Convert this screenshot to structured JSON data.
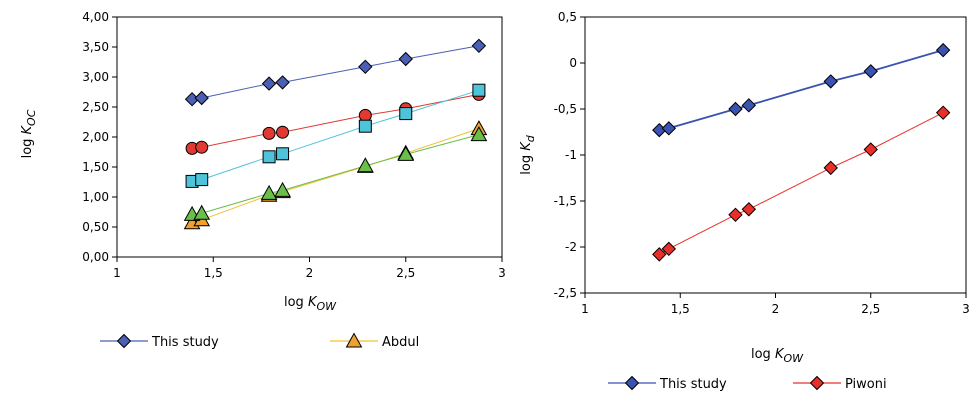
{
  "chart_data": [
    {
      "type": "scatter",
      "xlabel": {
        "prefix": "log ",
        "var": "K",
        "sub": "OW"
      },
      "ylabel": {
        "prefix": "log ",
        "var": "K",
        "sub": "OC"
      },
      "xlim": [
        1,
        3
      ],
      "ylim": [
        0,
        4
      ],
      "xticks": [
        "1",
        "1,5",
        "2",
        "2,5",
        "3"
      ],
      "xtick_values": [
        1,
        1.5,
        2,
        2.5,
        3
      ],
      "yticks": [
        "0,00",
        "0,50",
        "1,00",
        "1,50",
        "2,00",
        "2,50",
        "3,00",
        "3,50",
        "4,00"
      ],
      "ytick_values": [
        0,
        0.5,
        1,
        1.5,
        2,
        2.5,
        3,
        3.5,
        4
      ],
      "grid": false,
      "legend_position": "bottom",
      "series": [
        {
          "name": "This study",
          "marker": "diamond",
          "color": "#4a5fb5",
          "line": "#4a5fb5",
          "x": [
            1.39,
            1.44,
            1.79,
            1.86,
            2.29,
            2.5,
            2.88
          ],
          "y": [
            2.63,
            2.65,
            2.89,
            2.91,
            3.17,
            3.3,
            3.52
          ]
        },
        {
          "name": "",
          "marker": "circle",
          "color": "#e03a32",
          "line": "#e03a32",
          "x": [
            1.39,
            1.44,
            1.79,
            1.86,
            2.29,
            2.5,
            2.88
          ],
          "y": [
            1.81,
            1.83,
            2.06,
            2.08,
            2.36,
            2.47,
            2.71
          ]
        },
        {
          "name": "",
          "marker": "square",
          "color": "#4fc3d9",
          "line": "#4fc3d9",
          "x": [
            1.39,
            1.44,
            1.79,
            1.86,
            2.29,
            2.5,
            2.88
          ],
          "y": [
            1.26,
            1.29,
            1.67,
            1.72,
            2.18,
            2.39,
            2.78
          ]
        },
        {
          "name": "Abdul",
          "marker": "triangle",
          "color": "#f0a030",
          "line": "#f0c030",
          "x": [
            1.39,
            1.44,
            1.79,
            1.86,
            2.29,
            2.5,
            2.88
          ],
          "y": [
            0.57,
            0.62,
            1.03,
            1.09,
            1.51,
            1.73,
            2.14
          ]
        },
        {
          "name": "",
          "marker": "triangle",
          "color": "#6abf4b",
          "line": "#6abf4b",
          "x": [
            1.39,
            1.44,
            1.79,
            1.86,
            2.29,
            2.5,
            2.88
          ],
          "y": [
            0.71,
            0.73,
            1.06,
            1.11,
            1.52,
            1.71,
            2.04
          ]
        }
      ]
    },
    {
      "type": "scatter",
      "xlabel": {
        "prefix": "log ",
        "var": "K",
        "sub": "OW"
      },
      "ylabel": {
        "prefix": "log ",
        "var": "K",
        "sub": "d"
      },
      "xlim": [
        1,
        3
      ],
      "ylim": [
        -2.5,
        0.5
      ],
      "xticks": [
        "1",
        "1,5",
        "2",
        "2,5",
        "3"
      ],
      "xtick_values": [
        1,
        1.5,
        2,
        2.5,
        3
      ],
      "yticks": [
        "-2,5",
        "-2",
        "-1,5",
        "-1",
        "-0,5",
        "0",
        "0,5"
      ],
      "ytick_values": [
        -2.5,
        -2,
        -1.5,
        -1,
        -0.5,
        0,
        0.5
      ],
      "grid": false,
      "legend_position": "bottom",
      "series": [
        {
          "name": "This study",
          "marker": "diamond",
          "color": "#3a52b0",
          "line": "#3a52b0",
          "x": [
            1.39,
            1.44,
            1.79,
            1.86,
            2.29,
            2.5,
            2.88
          ],
          "y": [
            -0.73,
            -0.71,
            -0.5,
            -0.46,
            -0.2,
            -0.09,
            0.14
          ]
        },
        {
          "name": "Piwoni",
          "marker": "diamond",
          "color": "#e8302a",
          "line": "#e8302a",
          "x": [
            1.39,
            1.44,
            1.79,
            1.86,
            2.29,
            2.5,
            2.88
          ],
          "y": [
            -2.08,
            -2.02,
            -1.65,
            -1.59,
            -1.14,
            -0.94,
            -0.54
          ]
        }
      ]
    }
  ]
}
